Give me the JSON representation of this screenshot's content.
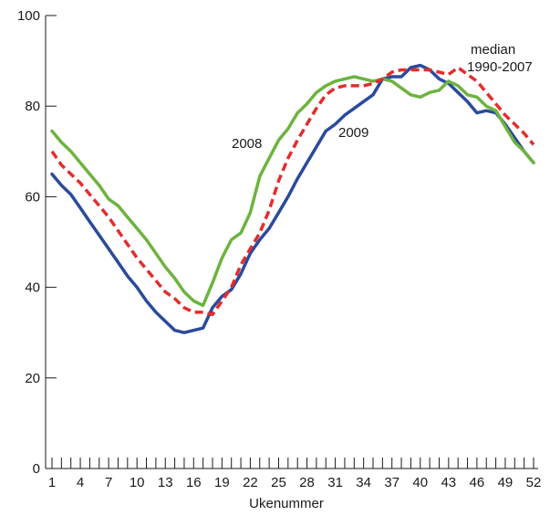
{
  "chart_data": {
    "type": "line",
    "xlabel": "Ukenummer",
    "ylabel": "",
    "xlim": [
      1,
      52
    ],
    "ylim": [
      0,
      100
    ],
    "x_ticks": [
      1,
      4,
      7,
      10,
      13,
      16,
      19,
      22,
      25,
      28,
      31,
      34,
      37,
      40,
      43,
      46,
      49,
      52
    ],
    "y_ticks": [
      0,
      20,
      40,
      60,
      80,
      100
    ],
    "grid": false,
    "legend": "inline labels",
    "series": [
      {
        "name": "2008",
        "color": "#6db33f",
        "style": "solid",
        "x": [
          1,
          2,
          3,
          4,
          5,
          6,
          7,
          8,
          9,
          10,
          11,
          12,
          13,
          14,
          15,
          16,
          17,
          18,
          19,
          20,
          21,
          22,
          23,
          24,
          25,
          26,
          27,
          28,
          29,
          30,
          31,
          32,
          33,
          34,
          35,
          36,
          37,
          38,
          39,
          40,
          41,
          42,
          43,
          44,
          45,
          46,
          47,
          48,
          49,
          50,
          51,
          52
        ],
        "values": [
          74.5,
          72,
          70,
          67.5,
          65,
          62.5,
          59.5,
          58,
          55.5,
          53,
          50.5,
          47.5,
          44.5,
          42,
          39,
          37,
          36,
          41,
          46.5,
          50.5,
          52,
          56.5,
          64.5,
          68.5,
          72.5,
          75,
          78.5,
          80.5,
          83,
          84.5,
          85.5,
          86,
          86.5,
          86,
          85.5,
          86,
          85.5,
          84,
          82.5,
          82,
          83,
          83.5,
          85.5,
          84.5,
          82.5,
          82,
          80,
          79,
          75.5,
          72,
          70,
          67.5
        ]
      },
      {
        "name": "2009",
        "color": "#2b4a9c",
        "style": "solid",
        "x": [
          1,
          2,
          3,
          4,
          5,
          6,
          7,
          8,
          9,
          10,
          11,
          12,
          13,
          14,
          15,
          16,
          17,
          18,
          19,
          20,
          21,
          22,
          23,
          24,
          25,
          26,
          27,
          28,
          29,
          30,
          31,
          32,
          33,
          34,
          35,
          36,
          37,
          38,
          39,
          40,
          41,
          42,
          43,
          44,
          45,
          46,
          47,
          48,
          49,
          50,
          51,
          52
        ],
        "values": [
          65,
          62.5,
          60.5,
          57.5,
          54.5,
          51.5,
          48.5,
          45.5,
          42.5,
          40,
          37,
          34.5,
          32.5,
          30.5,
          30,
          30.5,
          31,
          35.5,
          38,
          39.5,
          43,
          47.5,
          50.5,
          53,
          56.5,
          60,
          64,
          67.5,
          71,
          74.5,
          76,
          78,
          79.5,
          81,
          82.5,
          86,
          86.5,
          86.5,
          88.5,
          89,
          88,
          86,
          85,
          83,
          81,
          78.5,
          79,
          78.5,
          76,
          73,
          70,
          67.5
        ]
      },
      {
        "name": "median 1990-2007",
        "color": "#e32d2d",
        "style": "dashed",
        "x": [
          1,
          2,
          3,
          4,
          5,
          6,
          7,
          8,
          9,
          10,
          11,
          12,
          13,
          14,
          15,
          16,
          17,
          18,
          19,
          20,
          21,
          22,
          23,
          24,
          25,
          26,
          27,
          28,
          29,
          30,
          31,
          32,
          33,
          34,
          35,
          36,
          37,
          38,
          39,
          40,
          41,
          42,
          43,
          44,
          45,
          46,
          47,
          48,
          49,
          50,
          51,
          52
        ],
        "values": [
          70,
          67,
          65,
          63,
          60.5,
          58,
          55.5,
          52.5,
          49.5,
          46.5,
          44,
          41.5,
          39,
          37.5,
          35.5,
          34.5,
          34.5,
          34,
          37,
          40,
          45,
          48.5,
          52,
          57,
          63.5,
          68.5,
          72.5,
          76,
          79.5,
          82.5,
          84,
          84.5,
          84.5,
          84.5,
          85,
          86,
          87.5,
          88,
          88,
          88,
          88,
          87.5,
          87,
          88.5,
          87,
          85.5,
          83,
          80.5,
          78,
          76,
          74,
          71.5
        ]
      }
    ],
    "annotations": [
      {
        "text": "2008",
        "series": "2008"
      },
      {
        "text": "2009",
        "series": "2009"
      },
      {
        "lines": [
          "median",
          "1990-2007"
        ],
        "series": "median 1990-2007"
      }
    ]
  }
}
